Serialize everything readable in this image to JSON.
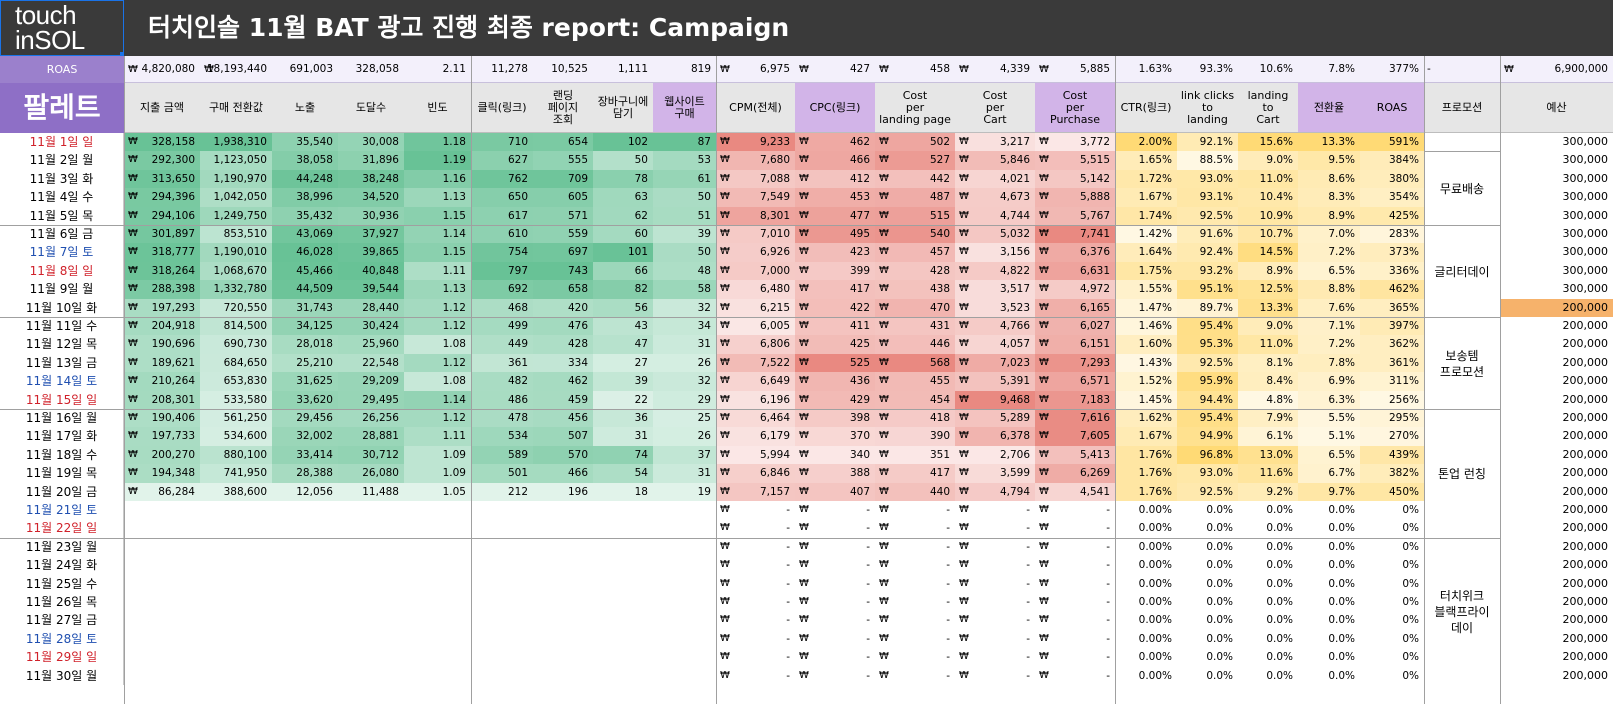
{
  "logo": {
    "line1": "touch",
    "line2": "inSOL"
  },
  "title": "터치인솔 11월 BAT 광고 진행 최종 report: Campaign",
  "roas_label": "ROAS",
  "palette_label": "팔레트",
  "currency_symbol": "₩",
  "colors": {
    "green": "#57bb8a",
    "red": "#e67c73",
    "yellow": "#ffd666",
    "purple_header": "#d2b4e8",
    "title_bg": "#3a3a3a",
    "budget_highlight": "#f6b26b"
  },
  "summary": {
    "spend": "4,820,080",
    "purchase_value": "18,193,440",
    "impressions": "691,003",
    "reach": "328,058",
    "frequency": "2.11",
    "clicks": "11,278",
    "landing": "10,525",
    "cart": "1,111",
    "purchase": "819",
    "cpm": "6,975",
    "cpc": "427",
    "cost_landing": "458",
    "cost_cart": "4,339",
    "cost_purchase": "5,885",
    "ctr": "1.63%",
    "link_to_landing": "93.3%",
    "landing_to_cart": "10.6%",
    "conv": "7.8%",
    "roas": "377%",
    "promo": "-",
    "budget": "6,900,000"
  },
  "headers": [
    "지출 금액",
    "구매 전환값",
    "노출",
    "도달수",
    "빈도",
    "클릭(링크)",
    "랜딩\n페이지\n조회",
    "장바구니에\n담기",
    "웹사이트\n구매",
    "CPM(전체)",
    "CPC(링크)",
    "Cost\nper\nlanding page",
    "Cost\nper\nCart",
    "Cost\nper\nPurchase",
    "CTR(링크)",
    "link clicks\nto\nlanding",
    "landing\nto\nCart",
    "전환율",
    "ROAS",
    "프로모션",
    "예산"
  ],
  "rows": [
    {
      "date": "11월 1일 일",
      "day": "red",
      "v": [
        "328,158",
        "1,938,310",
        "35,540",
        "30,008",
        "1.18",
        "710",
        "654",
        "102",
        "87",
        "9,233",
        "462",
        "502",
        "3,217",
        "3,772",
        "2.00%",
        "92.1%",
        "15.6%",
        "13.3%",
        "591%"
      ],
      "budget": "300,000"
    },
    {
      "date": "11월 2일 월",
      "day": "",
      "v": [
        "292,300",
        "1,123,050",
        "38,058",
        "31,896",
        "1.19",
        "627",
        "555",
        "50",
        "53",
        "7,680",
        "466",
        "527",
        "5,846",
        "5,515",
        "1.65%",
        "88.5%",
        "9.0%",
        "9.5%",
        "384%"
      ],
      "budget": "300,000"
    },
    {
      "date": "11월 3일 화",
      "day": "",
      "v": [
        "313,650",
        "1,190,970",
        "44,248",
        "38,248",
        "1.16",
        "762",
        "709",
        "78",
        "61",
        "7,088",
        "412",
        "442",
        "4,021",
        "5,142",
        "1.72%",
        "93.0%",
        "11.0%",
        "8.6%",
        "380%"
      ],
      "budget": "300,000"
    },
    {
      "date": "11월 4일 수",
      "day": "",
      "v": [
        "294,396",
        "1,042,050",
        "38,996",
        "34,520",
        "1.13",
        "650",
        "605",
        "63",
        "50",
        "7,549",
        "453",
        "487",
        "4,673",
        "5,888",
        "1.67%",
        "93.1%",
        "10.4%",
        "8.3%",
        "354%"
      ],
      "budget": "300,000"
    },
    {
      "date": "11월 5일 목",
      "day": "",
      "v": [
        "294,106",
        "1,249,750",
        "35,432",
        "30,936",
        "1.15",
        "617",
        "571",
        "62",
        "51",
        "8,301",
        "477",
        "515",
        "4,744",
        "5,767",
        "1.74%",
        "92.5%",
        "10.9%",
        "8.9%",
        "425%"
      ],
      "budget": "300,000"
    },
    {
      "date": "11월 6일 금",
      "day": "",
      "v": [
        "301,897",
        "853,510",
        "43,069",
        "37,927",
        "1.14",
        "610",
        "559",
        "60",
        "39",
        "7,010",
        "495",
        "540",
        "5,032",
        "7,741",
        "1.42%",
        "91.6%",
        "10.7%",
        "7.0%",
        "283%"
      ],
      "budget": "300,000"
    },
    {
      "date": "11월 7일 토",
      "day": "blue",
      "v": [
        "318,777",
        "1,190,010",
        "46,028",
        "39,865",
        "1.15",
        "754",
        "697",
        "101",
        "50",
        "6,926",
        "423",
        "457",
        "3,156",
        "6,376",
        "1.64%",
        "92.4%",
        "14.5%",
        "7.2%",
        "373%"
      ],
      "budget": "300,000"
    },
    {
      "date": "11월 8일 일",
      "day": "red",
      "v": [
        "318,264",
        "1,068,670",
        "45,466",
        "40,848",
        "1.11",
        "797",
        "743",
        "66",
        "48",
        "7,000",
        "399",
        "428",
        "4,822",
        "6,631",
        "1.75%",
        "93.2%",
        "8.9%",
        "6.5%",
        "336%"
      ],
      "budget": "300,000"
    },
    {
      "date": "11월 9일 월",
      "day": "",
      "v": [
        "288,398",
        "1,332,780",
        "44,509",
        "39,544",
        "1.13",
        "692",
        "658",
        "82",
        "58",
        "6,480",
        "417",
        "438",
        "3,517",
        "4,972",
        "1.55%",
        "95.1%",
        "12.5%",
        "8.8%",
        "462%"
      ],
      "budget": "300,000"
    },
    {
      "date": "11월 10일 화",
      "day": "",
      "v": [
        "197,293",
        "720,550",
        "31,743",
        "28,440",
        "1.12",
        "468",
        "420",
        "56",
        "32",
        "6,215",
        "422",
        "470",
        "3,523",
        "6,165",
        "1.47%",
        "89.7%",
        "13.3%",
        "7.6%",
        "365%"
      ],
      "budget": "200,000"
    },
    {
      "date": "11월 11일 수",
      "day": "",
      "v": [
        "204,918",
        "814,500",
        "34,125",
        "30,424",
        "1.12",
        "499",
        "476",
        "43",
        "34",
        "6,005",
        "411",
        "431",
        "4,766",
        "6,027",
        "1.46%",
        "95.4%",
        "9.0%",
        "7.1%",
        "397%"
      ],
      "budget": "200,000"
    },
    {
      "date": "11월 12일 목",
      "day": "",
      "v": [
        "190,696",
        "690,730",
        "28,018",
        "25,960",
        "1.08",
        "449",
        "428",
        "47",
        "31",
        "6,806",
        "425",
        "446",
        "4,057",
        "6,151",
        "1.60%",
        "95.3%",
        "11.0%",
        "7.2%",
        "362%"
      ],
      "budget": "200,000"
    },
    {
      "date": "11월 13일 금",
      "day": "",
      "v": [
        "189,621",
        "684,650",
        "25,210",
        "22,548",
        "1.12",
        "361",
        "334",
        "27",
        "26",
        "7,522",
        "525",
        "568",
        "7,023",
        "7,293",
        "1.43%",
        "92.5%",
        "8.1%",
        "7.8%",
        "361%"
      ],
      "budget": "200,000"
    },
    {
      "date": "11월 14일 토",
      "day": "blue",
      "v": [
        "210,264",
        "653,830",
        "31,625",
        "29,209",
        "1.08",
        "482",
        "462",
        "39",
        "32",
        "6,649",
        "436",
        "455",
        "5,391",
        "6,571",
        "1.52%",
        "95.9%",
        "8.4%",
        "6.9%",
        "311%"
      ],
      "budget": "200,000"
    },
    {
      "date": "11월 15일 일",
      "day": "red",
      "v": [
        "208,301",
        "533,580",
        "33,620",
        "29,495",
        "1.14",
        "486",
        "459",
        "22",
        "29",
        "6,196",
        "429",
        "454",
        "9,468",
        "7,183",
        "1.45%",
        "94.4%",
        "4.8%",
        "6.3%",
        "256%"
      ],
      "budget": "200,000"
    },
    {
      "date": "11월 16일 월",
      "day": "",
      "v": [
        "190,406",
        "561,250",
        "29,456",
        "26,256",
        "1.12",
        "478",
        "456",
        "36",
        "25",
        "6,464",
        "398",
        "418",
        "5,289",
        "7,616",
        "1.62%",
        "95.4%",
        "7.9%",
        "5.5%",
        "295%"
      ],
      "budget": "200,000"
    },
    {
      "date": "11월 17일 화",
      "day": "",
      "v": [
        "197,733",
        "534,600",
        "32,002",
        "28,881",
        "1.11",
        "534",
        "507",
        "31",
        "26",
        "6,179",
        "370",
        "390",
        "6,378",
        "7,605",
        "1.67%",
        "94.9%",
        "6.1%",
        "5.1%",
        "270%"
      ],
      "budget": "200,000"
    },
    {
      "date": "11월 18일 수",
      "day": "",
      "v": [
        "200,270",
        "880,100",
        "33,414",
        "30,712",
        "1.09",
        "589",
        "570",
        "74",
        "37",
        "5,994",
        "340",
        "351",
        "2,706",
        "5,413",
        "1.76%",
        "96.8%",
        "13.0%",
        "6.5%",
        "439%"
      ],
      "budget": "200,000"
    },
    {
      "date": "11월 19일 목",
      "day": "",
      "v": [
        "194,348",
        "741,950",
        "28,388",
        "26,080",
        "1.09",
        "501",
        "466",
        "54",
        "31",
        "6,846",
        "388",
        "417",
        "3,599",
        "6,269",
        "1.76%",
        "93.0%",
        "11.6%",
        "6.7%",
        "382%"
      ],
      "budget": "200,000"
    },
    {
      "date": "11월 20일 금",
      "day": "",
      "v": [
        "86,284",
        "388,600",
        "12,056",
        "11,488",
        "1.05",
        "212",
        "196",
        "18",
        "19",
        "7,157",
        "407",
        "440",
        "4,794",
        "4,541",
        "1.76%",
        "92.5%",
        "9.2%",
        "9.7%",
        "450%"
      ],
      "budget": "200,000"
    },
    {
      "date": "11월 21일 토",
      "day": "blue",
      "v": null,
      "budget": "200,000"
    },
    {
      "date": "11월 22일 일",
      "day": "red",
      "v": null,
      "budget": "200,000"
    },
    {
      "date": "11월 23일 월",
      "day": "",
      "v": null,
      "budget": "200,000"
    },
    {
      "date": "11월 24일 화",
      "day": "",
      "v": null,
      "budget": "200,000"
    },
    {
      "date": "11월 25일 수",
      "day": "",
      "v": null,
      "budget": "200,000"
    },
    {
      "date": "11월 26일 목",
      "day": "",
      "v": null,
      "budget": "200,000"
    },
    {
      "date": "11월 27일 금",
      "day": "",
      "v": null,
      "budget": "200,000"
    },
    {
      "date": "11월 28일 토",
      "day": "blue",
      "v": null,
      "budget": "200,000"
    },
    {
      "date": "11월 29일 일",
      "day": "red",
      "v": null,
      "budget": "200,000"
    },
    {
      "date": "11월 30일 월",
      "day": "",
      "v": null,
      "budget": "200,000"
    }
  ],
  "empty_row": {
    "cost": "-",
    "pct2": "0.00%",
    "pct1": "0.0%",
    "roas": "0%"
  },
  "promotions": [
    {
      "label": "무료배송",
      "start": 1,
      "end": 5
    },
    {
      "label": "글리터데이",
      "start": 5,
      "end": 10
    },
    {
      "label": "보송템\n프로모션",
      "start": 10,
      "end": 15
    },
    {
      "label": "톤업 런칭",
      "start": 15,
      "end": 22
    },
    {
      "label": "터치위크\n블랙프라이\n데이",
      "start": 22,
      "end": 30
    }
  ],
  "highlight_budget_row": 9
}
